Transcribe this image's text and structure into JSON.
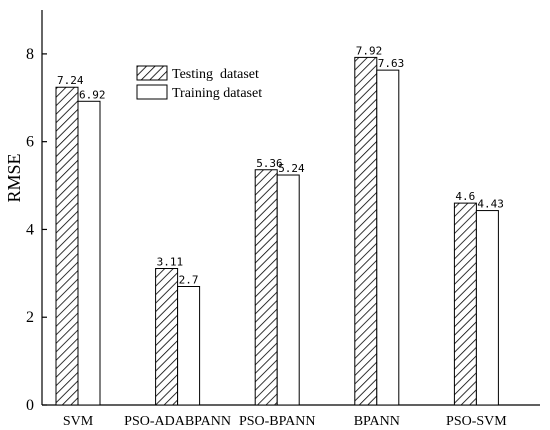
{
  "chart_data": {
    "type": "bar",
    "categories": [
      "SVM",
      "PSO-ADABPANN",
      "PSO-BPANN",
      "BPANN",
      "PSO-SVM"
    ],
    "series": [
      {
        "name": "Testing  dataset",
        "values": [
          7.24,
          3.11,
          5.36,
          7.92,
          4.6
        ],
        "labels": [
          "7.24",
          "3.11",
          "5.36",
          "7.92",
          "4.6"
        ],
        "pattern": "hatched"
      },
      {
        "name": "Training dataset",
        "values": [
          6.92,
          2.7,
          5.24,
          7.63,
          4.43
        ],
        "labels": [
          "6.92",
          "2.7",
          "5.24",
          "7.63",
          "4.43"
        ],
        "pattern": "white"
      }
    ],
    "xlabel": "",
    "ylabel": "RMSE",
    "ylim": [
      0,
      9
    ],
    "yticks": [
      0,
      2,
      4,
      6,
      8
    ],
    "legend_position": "top-center",
    "grid": false,
    "colors": {
      "stroke": "#000000",
      "fill": "#ffffff",
      "hatch": "#000000"
    }
  }
}
